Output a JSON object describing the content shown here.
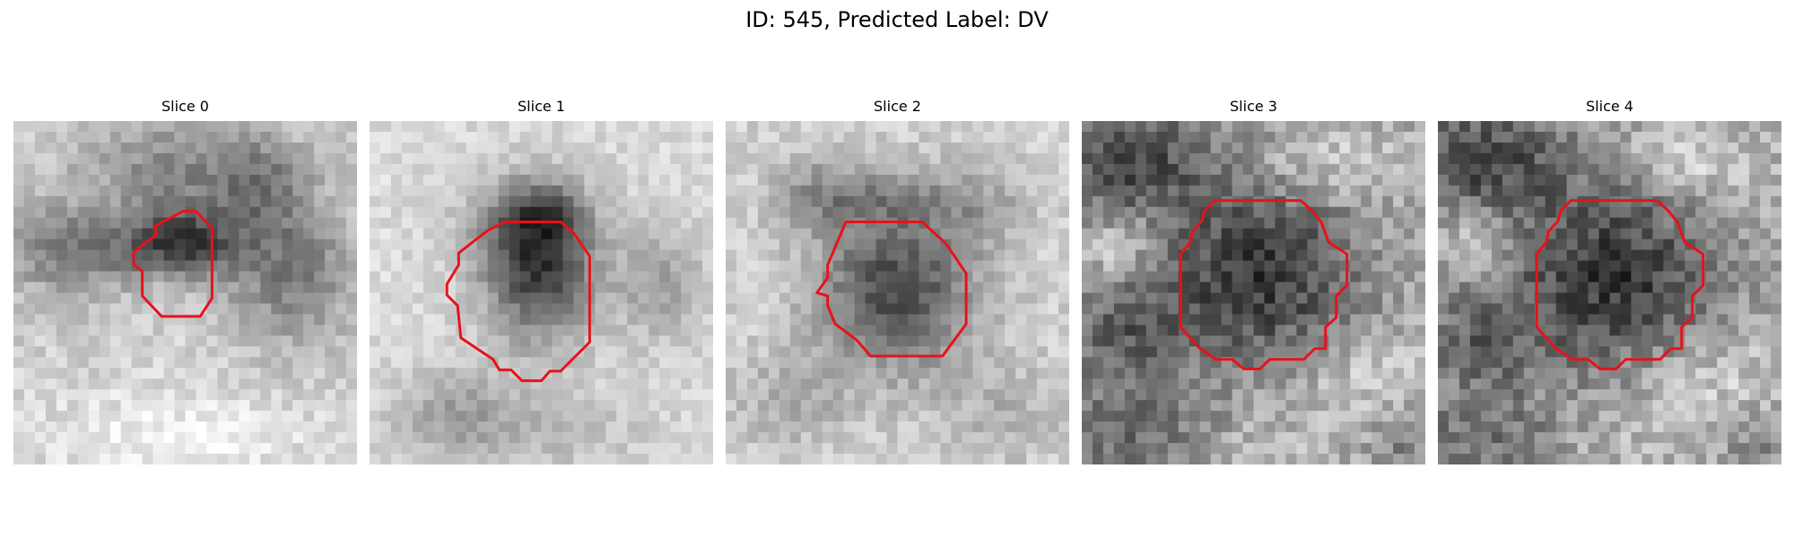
{
  "figure": {
    "title": "ID: 545, Predicted Label: DV",
    "contour_color": "#e8121a"
  },
  "slices": [
    {
      "label": "Slice 0"
    },
    {
      "label": "Slice 1"
    },
    {
      "label": "Slice 2"
    },
    {
      "label": "Slice 3"
    },
    {
      "label": "Slice 4"
    }
  ]
}
